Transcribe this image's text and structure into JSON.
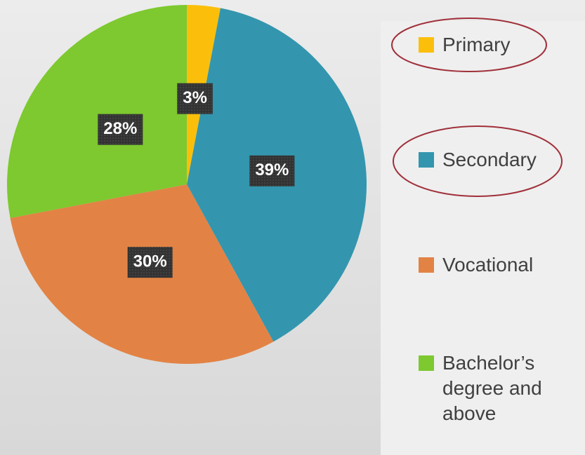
{
  "chart_data": {
    "type": "pie",
    "categories": [
      "Primary",
      "Secondary",
      "Vocational",
      "Bachelor’s degree and above"
    ],
    "values": [
      3,
      39,
      30,
      28
    ],
    "value_labels": [
      "3%",
      "39%",
      "30%",
      "28%"
    ],
    "colors": [
      "#fbbf0b",
      "#3396ae",
      "#e28345",
      "#7dc92f"
    ],
    "legend": "right"
  }
}
